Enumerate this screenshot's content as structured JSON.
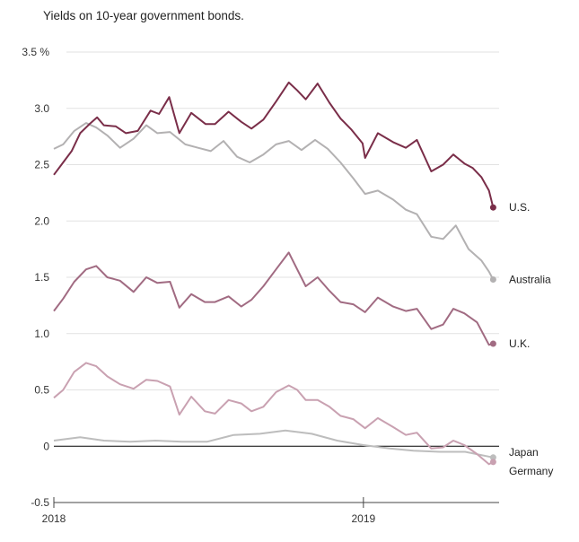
{
  "chart_data": {
    "type": "line",
    "title": "Yields on 10-year government bonds.",
    "y_unit": "%",
    "ylim": [
      -0.5,
      3.5
    ],
    "yticks": [
      -0.5,
      0,
      0.5,
      1.0,
      1.5,
      2.0,
      2.5,
      3.0,
      3.5
    ],
    "ytick_labels": [
      "-0.5",
      "0",
      "0.5",
      "1.0",
      "1.5",
      "2.0",
      "2.5",
      "3.0",
      "3.5 %"
    ],
    "xlim": [
      "2018-01-01",
      "2019-06-10"
    ],
    "xticks": [
      {
        "x": "2018-01-01",
        "label": "2018"
      },
      {
        "x": "2019-01-01",
        "label": "2019"
      }
    ],
    "grid": true,
    "series": [
      {
        "name": "U.S.",
        "color": "#7a2e49",
        "points": [
          [
            "2018-01-01",
            2.41
          ],
          [
            "2018-01-10",
            2.5
          ],
          [
            "2018-01-22",
            2.62
          ],
          [
            "2018-02-01",
            2.78
          ],
          [
            "2018-02-12",
            2.86
          ],
          [
            "2018-02-21",
            2.92
          ],
          [
            "2018-03-01",
            2.85
          ],
          [
            "2018-03-15",
            2.84
          ],
          [
            "2018-03-27",
            2.78
          ],
          [
            "2018-04-10",
            2.8
          ],
          [
            "2018-04-25",
            2.98
          ],
          [
            "2018-05-05",
            2.95
          ],
          [
            "2018-05-17",
            3.1
          ],
          [
            "2018-05-29",
            2.78
          ],
          [
            "2018-06-12",
            2.96
          ],
          [
            "2018-06-29",
            2.86
          ],
          [
            "2018-07-10",
            2.86
          ],
          [
            "2018-07-26",
            2.97
          ],
          [
            "2018-08-10",
            2.88
          ],
          [
            "2018-08-22",
            2.82
          ],
          [
            "2018-09-05",
            2.9
          ],
          [
            "2018-09-20",
            3.06
          ],
          [
            "2018-10-05",
            3.23
          ],
          [
            "2018-10-15",
            3.16
          ],
          [
            "2018-10-25",
            3.08
          ],
          [
            "2018-11-08",
            3.22
          ],
          [
            "2018-11-22",
            3.05
          ],
          [
            "2018-12-05",
            2.91
          ],
          [
            "2018-12-18",
            2.81
          ],
          [
            "2018-12-31",
            2.69
          ],
          [
            "2019-01-03",
            2.56
          ],
          [
            "2019-01-18",
            2.78
          ],
          [
            "2019-02-05",
            2.7
          ],
          [
            "2019-02-20",
            2.65
          ],
          [
            "2019-03-05",
            2.72
          ],
          [
            "2019-03-22",
            2.44
          ],
          [
            "2019-04-05",
            2.5
          ],
          [
            "2019-04-17",
            2.59
          ],
          [
            "2019-04-30",
            2.51
          ],
          [
            "2019-05-10",
            2.47
          ],
          [
            "2019-05-20",
            2.39
          ],
          [
            "2019-05-29",
            2.27
          ],
          [
            "2019-06-03",
            2.12
          ]
        ]
      },
      {
        "name": "Australia",
        "color": "#b3b1b2",
        "points": [
          [
            "2018-01-01",
            2.64
          ],
          [
            "2018-01-12",
            2.68
          ],
          [
            "2018-01-25",
            2.8
          ],
          [
            "2018-02-08",
            2.87
          ],
          [
            "2018-02-20",
            2.83
          ],
          [
            "2018-03-05",
            2.76
          ],
          [
            "2018-03-20",
            2.65
          ],
          [
            "2018-04-05",
            2.73
          ],
          [
            "2018-04-20",
            2.85
          ],
          [
            "2018-05-03",
            2.78
          ],
          [
            "2018-05-18",
            2.79
          ],
          [
            "2018-06-05",
            2.68
          ],
          [
            "2018-06-20",
            2.65
          ],
          [
            "2018-07-05",
            2.62
          ],
          [
            "2018-07-20",
            2.71
          ],
          [
            "2018-08-05",
            2.57
          ],
          [
            "2018-08-20",
            2.52
          ],
          [
            "2018-09-05",
            2.59
          ],
          [
            "2018-09-20",
            2.68
          ],
          [
            "2018-10-05",
            2.71
          ],
          [
            "2018-10-20",
            2.63
          ],
          [
            "2018-11-05",
            2.72
          ],
          [
            "2018-11-20",
            2.64
          ],
          [
            "2018-12-05",
            2.52
          ],
          [
            "2018-12-20",
            2.38
          ],
          [
            "2019-01-03",
            2.24
          ],
          [
            "2019-01-18",
            2.27
          ],
          [
            "2019-02-05",
            2.19
          ],
          [
            "2019-02-20",
            2.1
          ],
          [
            "2019-03-05",
            2.06
          ],
          [
            "2019-03-22",
            1.86
          ],
          [
            "2019-04-05",
            1.84
          ],
          [
            "2019-04-20",
            1.96
          ],
          [
            "2019-05-05",
            1.75
          ],
          [
            "2019-05-20",
            1.65
          ],
          [
            "2019-05-29",
            1.55
          ],
          [
            "2019-06-03",
            1.48
          ]
        ]
      },
      {
        "name": "U.K.",
        "color": "#a16b82",
        "points": [
          [
            "2018-01-01",
            1.2
          ],
          [
            "2018-01-12",
            1.31
          ],
          [
            "2018-01-25",
            1.46
          ],
          [
            "2018-02-08",
            1.57
          ],
          [
            "2018-02-20",
            1.6
          ],
          [
            "2018-03-05",
            1.5
          ],
          [
            "2018-03-20",
            1.47
          ],
          [
            "2018-04-05",
            1.37
          ],
          [
            "2018-04-20",
            1.5
          ],
          [
            "2018-05-03",
            1.45
          ],
          [
            "2018-05-18",
            1.46
          ],
          [
            "2018-05-29",
            1.23
          ],
          [
            "2018-06-12",
            1.35
          ],
          [
            "2018-06-28",
            1.28
          ],
          [
            "2018-07-10",
            1.28
          ],
          [
            "2018-07-26",
            1.33
          ],
          [
            "2018-08-10",
            1.24
          ],
          [
            "2018-08-22",
            1.3
          ],
          [
            "2018-09-05",
            1.42
          ],
          [
            "2018-09-20",
            1.57
          ],
          [
            "2018-10-05",
            1.72
          ],
          [
            "2018-10-15",
            1.57
          ],
          [
            "2018-10-25",
            1.42
          ],
          [
            "2018-11-08",
            1.5
          ],
          [
            "2018-11-22",
            1.38
          ],
          [
            "2018-12-05",
            1.28
          ],
          [
            "2018-12-20",
            1.26
          ],
          [
            "2019-01-03",
            1.19
          ],
          [
            "2019-01-18",
            1.32
          ],
          [
            "2019-02-05",
            1.24
          ],
          [
            "2019-02-20",
            1.2
          ],
          [
            "2019-03-05",
            1.22
          ],
          [
            "2019-03-22",
            1.04
          ],
          [
            "2019-04-05",
            1.08
          ],
          [
            "2019-04-17",
            1.22
          ],
          [
            "2019-04-30",
            1.18
          ],
          [
            "2019-05-15",
            1.1
          ],
          [
            "2019-05-29",
            0.9
          ],
          [
            "2019-06-03",
            0.91
          ]
        ]
      },
      {
        "name": "Germany",
        "color": "#c9a1b1",
        "points": [
          [
            "2018-01-01",
            0.43
          ],
          [
            "2018-01-12",
            0.5
          ],
          [
            "2018-01-25",
            0.66
          ],
          [
            "2018-02-08",
            0.74
          ],
          [
            "2018-02-20",
            0.71
          ],
          [
            "2018-03-05",
            0.62
          ],
          [
            "2018-03-20",
            0.55
          ],
          [
            "2018-04-05",
            0.51
          ],
          [
            "2018-04-20",
            0.59
          ],
          [
            "2018-05-03",
            0.58
          ],
          [
            "2018-05-18",
            0.53
          ],
          [
            "2018-05-29",
            0.28
          ],
          [
            "2018-06-12",
            0.44
          ],
          [
            "2018-06-28",
            0.31
          ],
          [
            "2018-07-10",
            0.29
          ],
          [
            "2018-07-26",
            0.41
          ],
          [
            "2018-08-10",
            0.38
          ],
          [
            "2018-08-22",
            0.31
          ],
          [
            "2018-09-05",
            0.35
          ],
          [
            "2018-09-20",
            0.48
          ],
          [
            "2018-10-05",
            0.54
          ],
          [
            "2018-10-15",
            0.5
          ],
          [
            "2018-10-25",
            0.41
          ],
          [
            "2018-11-08",
            0.41
          ],
          [
            "2018-11-22",
            0.35
          ],
          [
            "2018-12-05",
            0.27
          ],
          [
            "2018-12-20",
            0.24
          ],
          [
            "2019-01-03",
            0.16
          ],
          [
            "2019-01-18",
            0.25
          ],
          [
            "2019-02-05",
            0.17
          ],
          [
            "2019-02-20",
            0.1
          ],
          [
            "2019-03-05",
            0.12
          ],
          [
            "2019-03-22",
            -0.02
          ],
          [
            "2019-04-05",
            -0.01
          ],
          [
            "2019-04-17",
            0.05
          ],
          [
            "2019-04-30",
            0.01
          ],
          [
            "2019-05-15",
            -0.07
          ],
          [
            "2019-05-29",
            -0.16
          ],
          [
            "2019-06-03",
            -0.14
          ]
        ]
      },
      {
        "name": "Japan",
        "color": "#bdbdbd",
        "points": [
          [
            "2018-01-01",
            0.05
          ],
          [
            "2018-02-01",
            0.08
          ],
          [
            "2018-03-01",
            0.05
          ],
          [
            "2018-04-01",
            0.04
          ],
          [
            "2018-05-01",
            0.05
          ],
          [
            "2018-06-01",
            0.04
          ],
          [
            "2018-07-01",
            0.04
          ],
          [
            "2018-08-01",
            0.1
          ],
          [
            "2018-09-01",
            0.11
          ],
          [
            "2018-10-01",
            0.14
          ],
          [
            "2018-11-01",
            0.11
          ],
          [
            "2018-12-01",
            0.05
          ],
          [
            "2019-01-01",
            0.01
          ],
          [
            "2019-02-01",
            -0.02
          ],
          [
            "2019-03-01",
            -0.04
          ],
          [
            "2019-04-01",
            -0.05
          ],
          [
            "2019-05-01",
            -0.05
          ],
          [
            "2019-06-03",
            -0.1
          ]
        ]
      }
    ],
    "line_labels": [
      "U.S.",
      "Australia",
      "U.K.",
      "Japan",
      "Germany"
    ]
  }
}
